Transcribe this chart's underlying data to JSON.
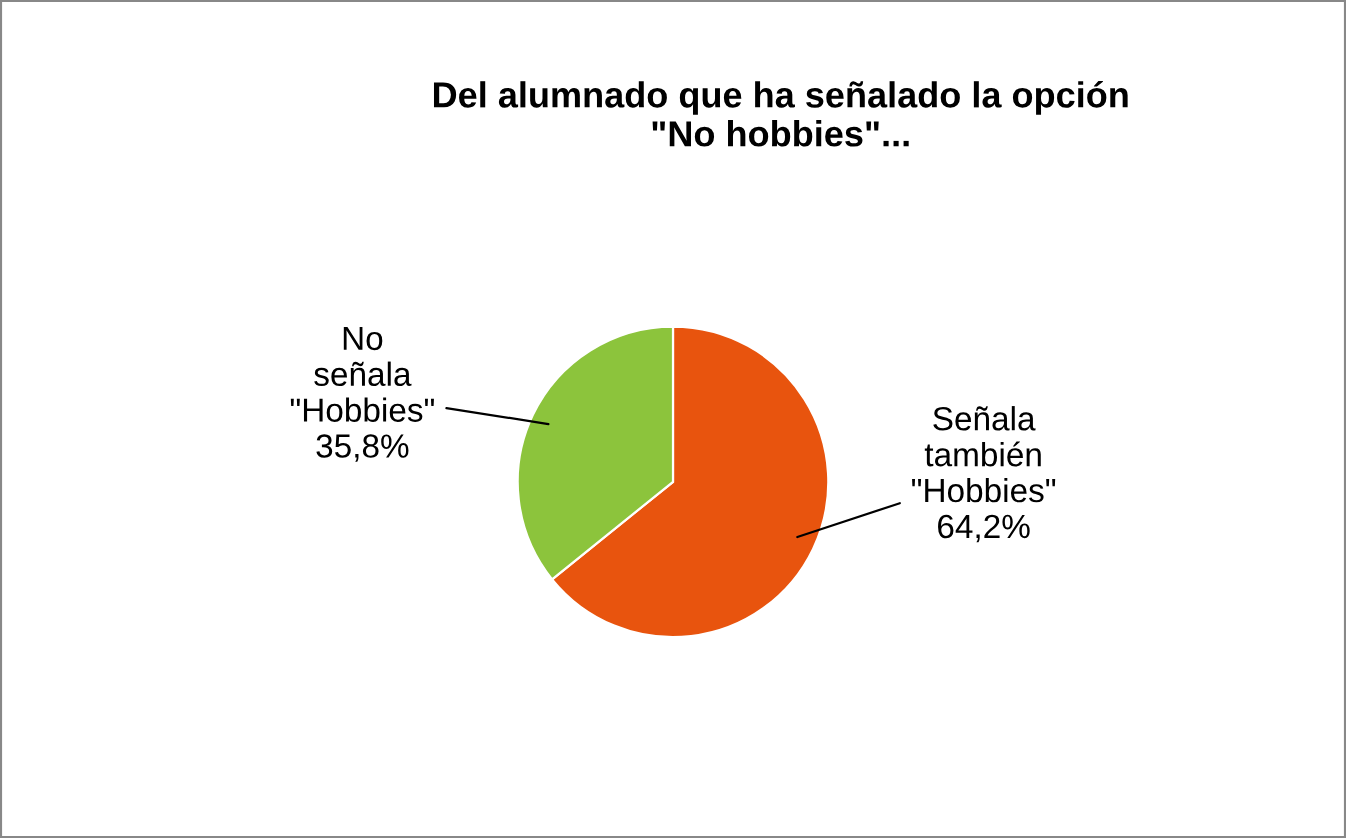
{
  "chart_data": {
    "type": "pie",
    "title": "Del alumnado que ha señalado la opción\n\"No hobbies\"...",
    "categories": [
      "Señala\ntambién\n\"Hobbies\"",
      "No\nseñala\n\"Hobbies\""
    ],
    "values": [
      64.2,
      35.8
    ],
    "value_labels": [
      "64,2%",
      "35,8%"
    ],
    "colors": [
      "#e8540e",
      "#8cc43c"
    ],
    "legend": false
  }
}
